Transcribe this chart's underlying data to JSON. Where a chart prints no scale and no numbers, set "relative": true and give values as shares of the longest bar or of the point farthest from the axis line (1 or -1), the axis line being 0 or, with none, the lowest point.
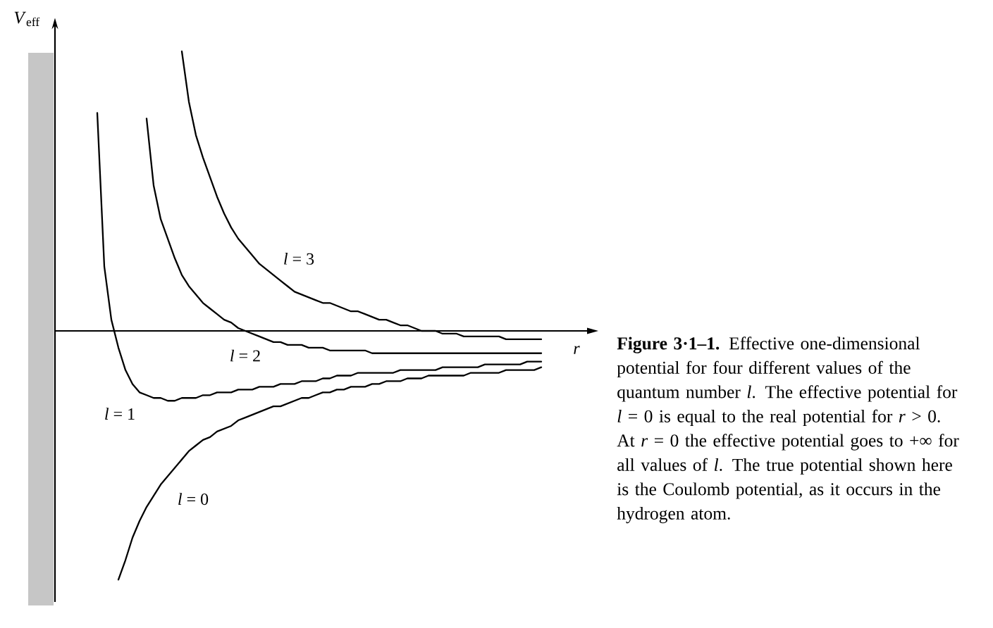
{
  "chart_data": {
    "type": "line",
    "relative": true,
    "xlabel": "*r*",
    "ylabel": "*V*$_{eff}$",
    "marker": "none",
    "line_style": "solid",
    "categories": [
      null,
      null,
      null,
      null,
      null,
      null,
      null,
      null,
      null,
      null,
      null,
      null,
      null,
      null,
      null,
      null,
      null,
      null,
      null,
      null,
      null,
      null,
      null,
      null,
      null,
      null,
      null,
      null,
      null,
      null,
      null,
      null,
      null,
      null,
      null,
      null,
      null,
      null,
      null,
      null,
      null,
      null,
      null,
      null,
      null,
      null,
      null,
      null,
      null,
      null,
      null,
      null,
      null,
      null,
      null,
      null,
      null,
      null,
      null,
      null,
      null,
      null,
      null,
      null
    ],
    "series": [
      {
        "name": "*l* = 1",
        "color": "#000000",
        "values": [
          0.78,
          0.23,
          0.04,
          -0.06,
          -0.14,
          -0.19,
          -0.22,
          -0.23,
          -0.24,
          -0.24,
          -0.25,
          -0.25,
          -0.24,
          -0.24,
          -0.24,
          -0.23,
          -0.23,
          -0.22,
          -0.22,
          -0.22,
          -0.21,
          -0.21,
          -0.21,
          -0.2,
          -0.2,
          -0.2,
          -0.19,
          -0.19,
          -0.19,
          -0.18,
          -0.18,
          -0.18,
          -0.17,
          -0.17,
          -0.16,
          -0.16,
          -0.16,
          -0.15,
          -0.15,
          -0.15,
          -0.15,
          -0.15,
          -0.15,
          -0.14,
          -0.14,
          -0.14,
          -0.14,
          -0.14,
          -0.14,
          -0.13,
          -0.13,
          -0.13,
          -0.13,
          -0.13,
          -0.13,
          -0.12,
          -0.12,
          -0.12,
          -0.12,
          -0.12,
          -0.12,
          -0.11,
          -0.11,
          -0.11
        ]
      },
      {
        "name": "*l* = 0",
        "color": "#000000",
        "values": [
          null,
          null,
          null,
          -0.89,
          -0.82,
          -0.74,
          -0.68,
          -0.63,
          -0.59,
          -0.55,
          -0.52,
          -0.49,
          -0.46,
          -0.43,
          -0.41,
          -0.39,
          -0.38,
          -0.36,
          -0.35,
          -0.34,
          -0.32,
          -0.31,
          -0.3,
          -0.29,
          -0.28,
          -0.27,
          -0.27,
          -0.26,
          -0.25,
          -0.24,
          -0.24,
          -0.23,
          -0.22,
          -0.22,
          -0.21,
          -0.21,
          -0.2,
          -0.2,
          -0.2,
          -0.19,
          -0.19,
          -0.18,
          -0.18,
          -0.18,
          -0.17,
          -0.17,
          -0.17,
          -0.16,
          -0.16,
          -0.16,
          -0.16,
          -0.16,
          -0.16,
          -0.15,
          -0.15,
          -0.15,
          -0.15,
          -0.15,
          -0.14,
          -0.14,
          -0.14,
          -0.14,
          -0.14,
          -0.13
        ]
      },
      {
        "name": "*l* = 2",
        "color": "#000000",
        "values": [
          null,
          null,
          null,
          null,
          null,
          null,
          null,
          0.76,
          0.52,
          0.4,
          0.33,
          0.26,
          0.2,
          0.16,
          0.13,
          0.1,
          0.08,
          0.06,
          0.04,
          0.03,
          0.01,
          0.0,
          -0.01,
          -0.02,
          -0.03,
          -0.04,
          -0.04,
          -0.05,
          -0.05,
          -0.05,
          -0.06,
          -0.06,
          -0.06,
          -0.07,
          -0.07,
          -0.07,
          -0.07,
          -0.07,
          -0.07,
          -0.08,
          -0.08,
          -0.08,
          -0.08,
          -0.08,
          -0.08,
          -0.08,
          -0.08,
          -0.08,
          -0.08,
          -0.08,
          -0.08,
          -0.08,
          -0.08,
          -0.08,
          -0.08,
          -0.08,
          -0.08,
          -0.08,
          -0.08,
          -0.08,
          -0.08,
          -0.08,
          -0.08,
          -0.08
        ]
      },
      {
        "name": "*l* = 3",
        "color": "#000000",
        "values": [
          null,
          null,
          null,
          null,
          null,
          null,
          null,
          null,
          null,
          null,
          null,
          null,
          1.0,
          0.82,
          0.7,
          0.62,
          0.55,
          0.48,
          0.42,
          0.37,
          0.33,
          0.3,
          0.27,
          0.24,
          0.22,
          0.2,
          0.18,
          0.16,
          0.14,
          0.13,
          0.12,
          0.11,
          0.1,
          0.1,
          0.09,
          0.08,
          0.07,
          0.07,
          0.06,
          0.05,
          0.04,
          0.04,
          0.03,
          0.02,
          0.02,
          0.01,
          0.0,
          0.0,
          0.0,
          -0.01,
          -0.01,
          -0.01,
          -0.02,
          -0.02,
          -0.02,
          -0.02,
          -0.02,
          -0.02,
          -0.03,
          -0.03,
          -0.03,
          -0.03,
          -0.03,
          -0.03
        ]
      }
    ],
    "annotations": [
      "**Figure 3·1–1.** Effective one-dimensional potential for four different values of the quantum number *l*. The effective potential for *l* = 0 is equal to the real potential for *r* > 0. At *r* = 0 the effective potential goes to +∞ for all values of *l*. The true potential shown here is the Coulomb potential, as it occurs in the hydrogen atom."
    ]
  }
}
